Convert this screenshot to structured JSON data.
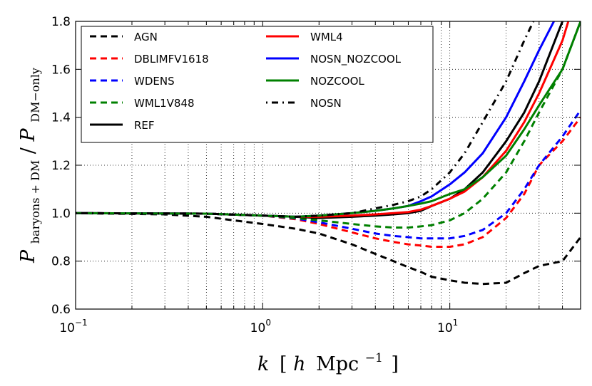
{
  "chart_data": {
    "type": "line",
    "xscale": "log",
    "xlim": [
      0.1,
      50
    ],
    "ylim": [
      0.6,
      1.8
    ],
    "grid": true,
    "xlabel": "k [h Mpc^-1]",
    "xlabel_parts": {
      "k": "k",
      "open": "[",
      "h": "h",
      "unit": "Mpc",
      "exp": "−1",
      "close": "]"
    },
    "ylabel": "P_baryons+DM / P_DM−only",
    "ylabel_parts": {
      "p1": "P",
      "sub1": "baryons + DM",
      "slash": "/",
      "p2": "P",
      "sub2": "DM−only"
    },
    "x_ticks": [
      {
        "value": 0.1,
        "base": "10",
        "exp": "−1"
      },
      {
        "value": 1,
        "base": "10",
        "exp": "0"
      },
      {
        "value": 10,
        "base": "10",
        "exp": "1"
      }
    ],
    "y_ticks": [
      "0.6",
      "0.8",
      "1.0",
      "1.2",
      "1.4",
      "1.6",
      "1.8"
    ],
    "series": [
      {
        "name": "AGN",
        "color": "#000000",
        "dash": "dashed",
        "x": [
          0.1,
          0.3,
          0.5,
          0.7,
          1.0,
          1.5,
          2,
          3,
          4,
          5,
          6,
          7,
          8,
          10,
          12,
          15,
          20,
          25,
          30,
          40,
          50
        ],
        "y": [
          1.0,
          0.995,
          0.985,
          0.97,
          0.955,
          0.935,
          0.915,
          0.87,
          0.83,
          0.8,
          0.775,
          0.755,
          0.735,
          0.72,
          0.71,
          0.705,
          0.71,
          0.75,
          0.78,
          0.8,
          0.9
        ]
      },
      {
        "name": "DBLIMFV1618",
        "color": "#ff0000",
        "dash": "dashed",
        "x": [
          0.1,
          0.5,
          1.0,
          1.5,
          2,
          3,
          4,
          5,
          6,
          7,
          8,
          10,
          12,
          15,
          20,
          25,
          30,
          40,
          50
        ],
        "y": [
          1.0,
          0.998,
          0.99,
          0.975,
          0.955,
          0.92,
          0.895,
          0.88,
          0.87,
          0.865,
          0.86,
          0.86,
          0.87,
          0.9,
          0.98,
          1.08,
          1.2,
          1.3,
          1.4
        ]
      },
      {
        "name": "WDENS",
        "color": "#0000ff",
        "dash": "dashed",
        "x": [
          0.1,
          0.5,
          1.0,
          1.5,
          2,
          3,
          4,
          5,
          6,
          7,
          8,
          10,
          12,
          15,
          20,
          25,
          30,
          40,
          50
        ],
        "y": [
          1.0,
          0.998,
          0.99,
          0.978,
          0.962,
          0.935,
          0.915,
          0.905,
          0.9,
          0.895,
          0.895,
          0.895,
          0.905,
          0.93,
          1.0,
          1.1,
          1.2,
          1.32,
          1.43
        ]
      },
      {
        "name": "WML1V848",
        "color": "#008000",
        "dash": "dashed",
        "x": [
          0.1,
          0.5,
          1.0,
          1.5,
          2,
          3,
          4,
          5,
          6,
          7,
          8,
          10,
          12,
          15,
          20,
          25,
          30,
          40,
          50
        ],
        "y": [
          1.0,
          0.998,
          0.99,
          0.98,
          0.97,
          0.955,
          0.945,
          0.94,
          0.94,
          0.945,
          0.95,
          0.97,
          1.0,
          1.06,
          1.17,
          1.3,
          1.42,
          1.6,
          1.8
        ]
      },
      {
        "name": "REF",
        "color": "#000000",
        "dash": "solid",
        "x": [
          0.1,
          0.5,
          1.0,
          1.5,
          2,
          3,
          4,
          5,
          6,
          7,
          8,
          10,
          12,
          15,
          20,
          25,
          30,
          40
        ],
        "y": [
          1.0,
          0.998,
          0.99,
          0.985,
          0.98,
          0.985,
          0.99,
          0.995,
          1.0,
          1.01,
          1.03,
          1.06,
          1.1,
          1.17,
          1.3,
          1.42,
          1.55,
          1.8
        ]
      },
      {
        "name": "WML4",
        "color": "#ff0000",
        "dash": "solid",
        "x": [
          0.1,
          0.5,
          1.0,
          1.5,
          2,
          3,
          4,
          5,
          6,
          7,
          8,
          10,
          12,
          15,
          20,
          25,
          30,
          40,
          43
        ],
        "y": [
          1.0,
          0.998,
          0.99,
          0.985,
          0.985,
          0.99,
          0.995,
          1.0,
          1.005,
          1.015,
          1.03,
          1.06,
          1.09,
          1.15,
          1.26,
          1.38,
          1.5,
          1.72,
          1.8
        ]
      },
      {
        "name": "NOSN_NOZCOOL",
        "color": "#0000ff",
        "dash": "solid",
        "x": [
          0.1,
          0.5,
          1.0,
          1.5,
          2,
          3,
          4,
          5,
          6,
          7,
          8,
          10,
          12,
          15,
          20,
          25,
          30,
          36
        ],
        "y": [
          1.0,
          0.998,
          0.99,
          0.985,
          0.99,
          1.0,
          1.01,
          1.02,
          1.03,
          1.05,
          1.07,
          1.12,
          1.17,
          1.25,
          1.4,
          1.55,
          1.68,
          1.8
        ]
      },
      {
        "name": "NOZCOOL",
        "color": "#008000",
        "dash": "solid",
        "x": [
          0.1,
          0.5,
          1.0,
          1.5,
          2,
          3,
          4,
          5,
          6,
          7,
          8,
          10,
          12,
          15,
          20,
          25,
          30,
          40,
          50
        ],
        "y": [
          1.0,
          0.998,
          0.99,
          0.985,
          0.99,
          1.0,
          1.01,
          1.02,
          1.03,
          1.04,
          1.05,
          1.08,
          1.1,
          1.15,
          1.24,
          1.35,
          1.45,
          1.6,
          1.8
        ]
      },
      {
        "name": "NOSN",
        "color": "#000000",
        "dash": "dashdot",
        "x": [
          0.1,
          0.5,
          1.0,
          1.5,
          2,
          3,
          4,
          5,
          6,
          7,
          8,
          10,
          12,
          15,
          20,
          25,
          28
        ],
        "y": [
          1.0,
          0.998,
          0.99,
          0.985,
          0.99,
          1.0,
          1.02,
          1.035,
          1.05,
          1.07,
          1.1,
          1.17,
          1.25,
          1.38,
          1.55,
          1.72,
          1.8
        ]
      }
    ],
    "legend": {
      "position": "top-left",
      "columns": [
        [
          "AGN",
          "DBLIMFV1618",
          "WDENS",
          "WML1V848",
          "REF"
        ],
        [
          "WML4",
          "NOSN_NOZCOOL",
          "NOZCOOL",
          "NOSN"
        ]
      ]
    }
  }
}
